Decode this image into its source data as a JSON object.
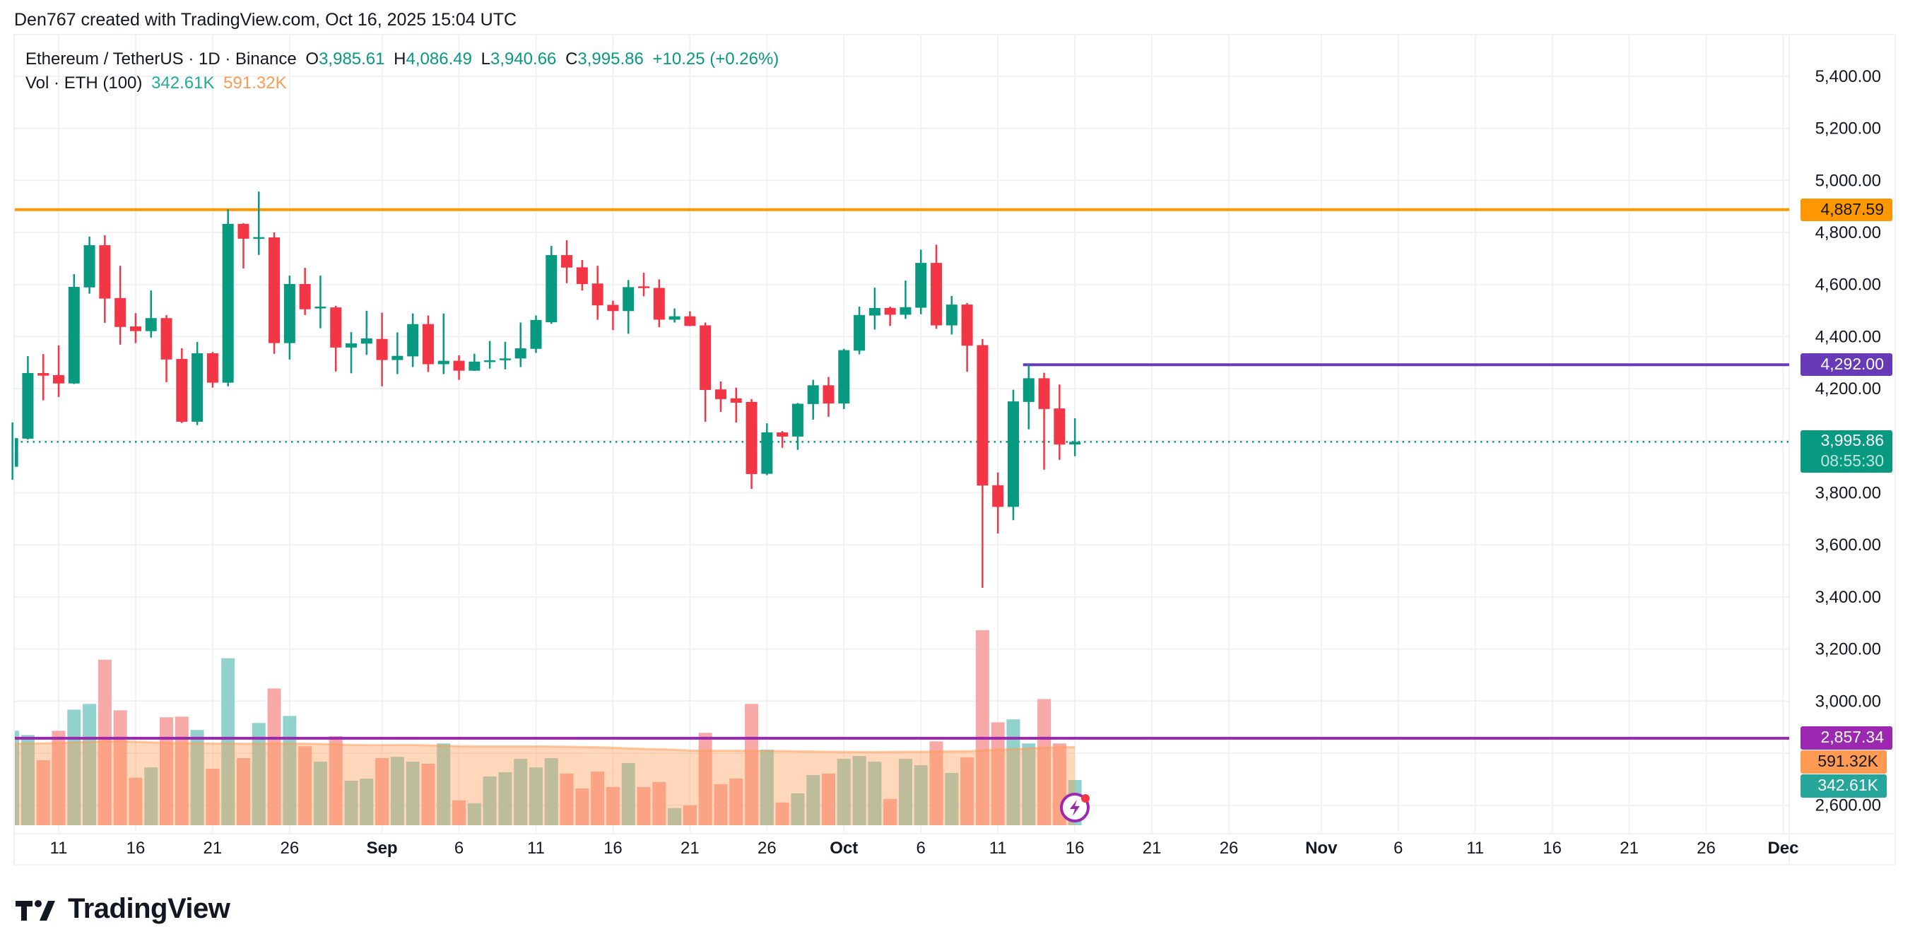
{
  "attribution": "Den767 created with TradingView.com, Oct 16, 2025 15:04 UTC",
  "legend": {
    "symbol": "Ethereum / TetherUS · 1D · Binance",
    "o_label": "O",
    "o_value": "3,985.61",
    "h_label": "H",
    "h_value": "4,086.49",
    "l_label": "L",
    "l_value": "3,940.66",
    "c_label": "C",
    "c_value": "3,995.86",
    "change": "+10.25 (+0.26%)",
    "vol_label": "Vol · ETH (100)",
    "vol_value": "342.61K",
    "vol_ma_value": "591.32K"
  },
  "badges": {
    "orange_line": "4,887.59",
    "purple_line": "4,292.00",
    "last_price": "3,995.86",
    "countdown": "08:55:30",
    "magenta_line": "2,857.34",
    "vol_ma": "591.32K",
    "vol": "342.61K"
  },
  "logo_text": "TradingView",
  "colors": {
    "up": "#089981",
    "down": "#f23645",
    "vol_up": "#92d2cc",
    "vol_down": "#f7a9a7",
    "vol_ma": "#ff9a52",
    "orange_line": "#ff9800",
    "purple_line": "#673ab7",
    "magenta_line": "#9c27b0",
    "grid": "#f0f1f3"
  },
  "chart_data": {
    "type": "candlestick",
    "interval": "1D",
    "y_axis": {
      "ticks": [
        "5,400.00",
        "5,200.00",
        "5,000.00",
        "4,800.00",
        "4,600.00",
        "4,400.00",
        "4,200.00",
        "4,000.00",
        "3,800.00",
        "3,600.00",
        "3,400.00",
        "3,200.00",
        "3,000.00",
        "2,800.00",
        "2,600.00"
      ],
      "range": [
        2600,
        5400
      ],
      "position": "right"
    },
    "x_axis": {
      "ticks": [
        {
          "label": "11",
          "date": "2025-08-11"
        },
        {
          "label": "16",
          "date": "2025-08-16"
        },
        {
          "label": "21",
          "date": "2025-08-21"
        },
        {
          "label": "26",
          "date": "2025-08-26"
        },
        {
          "label": "Sep",
          "date": "2025-09-01",
          "month": true
        },
        {
          "label": "6",
          "date": "2025-09-06"
        },
        {
          "label": "11",
          "date": "2025-09-11"
        },
        {
          "label": "16",
          "date": "2025-09-16"
        },
        {
          "label": "21",
          "date": "2025-09-21"
        },
        {
          "label": "26",
          "date": "2025-09-26"
        },
        {
          "label": "Oct",
          "date": "2025-10-01",
          "month": true
        },
        {
          "label": "6",
          "date": "2025-10-06"
        },
        {
          "label": "11",
          "date": "2025-10-11"
        },
        {
          "label": "16",
          "date": "2025-10-16"
        },
        {
          "label": "21",
          "date": "2025-10-21"
        },
        {
          "label": "26",
          "date": "2025-10-26"
        },
        {
          "label": "Nov",
          "date": "2025-11-01",
          "month": true
        },
        {
          "label": "6",
          "date": "2025-11-06"
        },
        {
          "label": "11",
          "date": "2025-11-11"
        },
        {
          "label": "16",
          "date": "2025-11-16"
        },
        {
          "label": "21",
          "date": "2025-11-21"
        },
        {
          "label": "26",
          "date": "2025-11-26"
        },
        {
          "label": "Dec",
          "date": "2025-12-01",
          "month": true
        }
      ]
    },
    "grid": true,
    "horizontal_lines": [
      {
        "price": 4887.59,
        "color": "#ff9800"
      },
      {
        "price": 4292.0,
        "color": "#673ab7",
        "from": "2025-10-13"
      },
      {
        "price": 2857.34,
        "color": "#9c27b0"
      }
    ],
    "last_price": 3995.86,
    "columns": [
      "date",
      "open",
      "high",
      "low",
      "close",
      "volume_k"
    ],
    "candles": [
      [
        "2025-08-08",
        3900,
        4070,
        3850,
        4010,
        715
      ],
      [
        "2025-08-09",
        4008,
        4325,
        4005,
        4260,
        683
      ],
      [
        "2025-08-10",
        4260,
        4333,
        4155,
        4250,
        492
      ],
      [
        "2025-08-11",
        4252,
        4366,
        4168,
        4220,
        715
      ],
      [
        "2025-08-12",
        4220,
        4640,
        4218,
        4591,
        875
      ],
      [
        "2025-08-13",
        4589,
        4784,
        4565,
        4751,
        918
      ],
      [
        "2025-08-14",
        4751,
        4789,
        4453,
        4546,
        1253
      ],
      [
        "2025-08-15",
        4548,
        4672,
        4369,
        4437,
        870
      ],
      [
        "2025-08-16",
        4439,
        4490,
        4375,
        4421,
        359
      ],
      [
        "2025-08-17",
        4421,
        4577,
        4396,
        4471,
        438
      ],
      [
        "2025-08-18",
        4471,
        4482,
        4225,
        4312,
        817
      ],
      [
        "2025-08-19",
        4314,
        4355,
        4068,
        4073,
        822
      ],
      [
        "2025-08-20",
        4073,
        4379,
        4060,
        4336,
        721
      ],
      [
        "2025-08-21",
        4336,
        4341,
        4204,
        4223,
        428
      ],
      [
        "2025-08-22",
        4223,
        4890,
        4209,
        4833,
        1264
      ],
      [
        "2025-08-23",
        4833,
        4836,
        4662,
        4776,
        508
      ],
      [
        "2025-08-24",
        4776,
        4957,
        4714,
        4782,
        774
      ],
      [
        "2025-08-25",
        4781,
        4800,
        4334,
        4375,
        1035
      ],
      [
        "2025-08-26",
        4375,
        4634,
        4312,
        4602,
        827
      ],
      [
        "2025-08-27",
        4602,
        4664,
        4483,
        4505,
        598
      ],
      [
        "2025-08-28",
        4510,
        4634,
        4432,
        4515,
        481
      ],
      [
        "2025-08-29",
        4512,
        4518,
        4266,
        4358,
        673
      ],
      [
        "2025-08-30",
        4358,
        4417,
        4259,
        4374,
        337
      ],
      [
        "2025-08-31",
        4373,
        4499,
        4330,
        4393,
        353
      ],
      [
        "2025-09-01",
        4391,
        4492,
        4209,
        4310,
        508
      ],
      [
        "2025-09-02",
        4310,
        4416,
        4256,
        4326,
        518
      ],
      [
        "2025-09-03",
        4324,
        4489,
        4283,
        4448,
        481
      ],
      [
        "2025-09-04",
        4448,
        4481,
        4264,
        4294,
        465
      ],
      [
        "2025-09-05",
        4294,
        4489,
        4256,
        4307,
        619
      ],
      [
        "2025-09-06",
        4307,
        4328,
        4234,
        4269,
        188
      ],
      [
        "2025-09-07",
        4269,
        4334,
        4268,
        4304,
        167
      ],
      [
        "2025-09-08",
        4305,
        4383,
        4277,
        4309,
        369
      ],
      [
        "2025-09-09",
        4312,
        4380,
        4274,
        4316,
        401
      ],
      [
        "2025-09-10",
        4316,
        4454,
        4283,
        4355,
        502
      ],
      [
        "2025-09-11",
        4353,
        4481,
        4337,
        4464,
        438
      ],
      [
        "2025-09-12",
        4455,
        4748,
        4449,
        4713,
        508
      ],
      [
        "2025-09-13",
        4713,
        4770,
        4605,
        4665,
        391
      ],
      [
        "2025-09-14",
        4666,
        4694,
        4577,
        4602,
        279
      ],
      [
        "2025-09-15",
        4604,
        4672,
        4465,
        4520,
        406
      ],
      [
        "2025-09-16",
        4522,
        4538,
        4425,
        4498,
        289
      ],
      [
        "2025-09-17",
        4498,
        4617,
        4411,
        4590,
        470
      ],
      [
        "2025-09-18",
        4593,
        4645,
        4555,
        4589,
        289
      ],
      [
        "2025-09-19",
        4587,
        4620,
        4436,
        4465,
        327
      ],
      [
        "2025-09-20",
        4465,
        4508,
        4454,
        4478,
        130
      ],
      [
        "2025-09-21",
        4478,
        4497,
        4440,
        4441,
        151
      ],
      [
        "2025-09-22",
        4443,
        4454,
        4073,
        4195,
        699
      ],
      [
        "2025-09-23",
        4197,
        4228,
        4111,
        4160,
        311
      ],
      [
        "2025-09-24",
        4163,
        4204,
        4070,
        4146,
        353
      ],
      [
        "2025-09-25",
        4149,
        4160,
        3815,
        3872,
        918
      ],
      [
        "2025-09-26",
        3873,
        4067,
        3868,
        4032,
        572
      ],
      [
        "2025-09-27",
        4032,
        4037,
        3973,
        4016,
        172
      ],
      [
        "2025-09-28",
        4016,
        4145,
        3965,
        4142,
        241
      ],
      [
        "2025-09-29",
        4141,
        4234,
        4081,
        4213,
        380
      ],
      [
        "2025-09-30",
        4213,
        4245,
        4092,
        4143,
        391
      ],
      [
        "2025-10-01",
        4143,
        4353,
        4122,
        4348,
        502
      ],
      [
        "2025-10-02",
        4346,
        4515,
        4332,
        4483,
        524
      ],
      [
        "2025-10-03",
        4481,
        4588,
        4427,
        4510,
        481
      ],
      [
        "2025-10-04",
        4510,
        4515,
        4441,
        4484,
        199
      ],
      [
        "2025-10-05",
        4484,
        4615,
        4468,
        4513,
        502
      ],
      [
        "2025-10-06",
        4511,
        4734,
        4486,
        4683,
        454
      ],
      [
        "2025-10-07",
        4683,
        4753,
        4430,
        4443,
        635
      ],
      [
        "2025-10-08",
        4443,
        4556,
        4408,
        4523,
        396
      ],
      [
        "2025-10-09",
        4523,
        4529,
        4265,
        4365,
        513
      ],
      [
        "2025-10-10",
        4367,
        4391,
        3435,
        3828,
        1477
      ],
      [
        "2025-10-11",
        3829,
        3878,
        3644,
        3746,
        779
      ],
      [
        "2025-10-12",
        3746,
        4196,
        3695,
        4151,
        801
      ],
      [
        "2025-10-13",
        4149,
        4292,
        4044,
        4240,
        619
      ],
      [
        "2025-10-14",
        4240,
        4261,
        3889,
        4122,
        955
      ],
      [
        "2025-10-15",
        4124,
        4216,
        3927,
        3985.61,
        619
      ],
      [
        "2025-10-16",
        3985.61,
        4086.49,
        3940.66,
        3995.86,
        342.61
      ]
    ],
    "volume_ma_k": [
      616,
      618,
      620,
      622,
      626,
      630,
      635,
      636,
      632,
      628,
      622,
      620,
      620,
      618,
      618,
      617,
      617,
      618,
      618,
      617,
      615,
      612,
      608,
      606,
      606,
      607,
      607,
      605,
      602,
      598,
      597,
      597,
      597,
      597,
      597,
      596,
      594,
      592,
      590,
      586,
      582,
      578,
      575,
      572,
      565,
      564,
      564,
      564,
      563,
      562,
      562,
      560,
      558,
      556,
      555,
      554,
      554,
      555,
      556,
      557,
      558,
      560,
      560,
      566,
      572,
      576,
      580,
      586,
      590,
      591.32
    ]
  }
}
